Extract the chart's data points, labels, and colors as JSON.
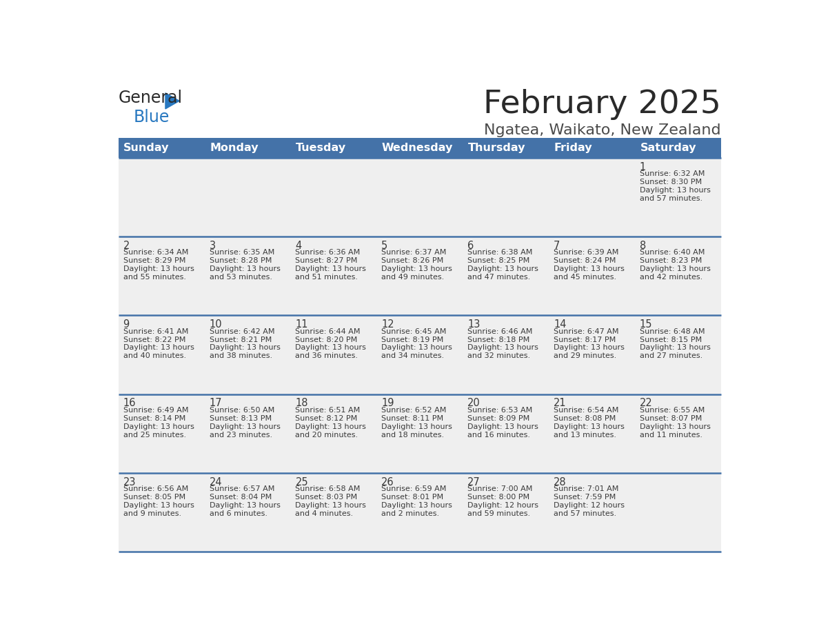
{
  "title": "February 2025",
  "subtitle": "Ngatea, Waikato, New Zealand",
  "days_of_week": [
    "Sunday",
    "Monday",
    "Tuesday",
    "Wednesday",
    "Thursday",
    "Friday",
    "Saturday"
  ],
  "header_bg": "#4472a8",
  "header_text": "#ffffff",
  "row_bg": "#efefef",
  "cell_border": "#4472a8",
  "day_number_color": "#3a3a3a",
  "info_text_color": "#3a3a3a",
  "title_color": "#2a2a2a",
  "subtitle_color": "#4a4a4a",
  "logo_general_color": "#2a2a2a",
  "logo_blue_color": "#2878c0",
  "calendar_data": [
    [
      null,
      null,
      null,
      null,
      null,
      null,
      {
        "day": "1",
        "sunrise": "6:32 AM",
        "sunset": "8:30 PM",
        "daylight_line1": "Daylight: 13 hours",
        "daylight_line2": "and 57 minutes."
      }
    ],
    [
      {
        "day": "2",
        "sunrise": "6:34 AM",
        "sunset": "8:29 PM",
        "daylight_line1": "Daylight: 13 hours",
        "daylight_line2": "and 55 minutes."
      },
      {
        "day": "3",
        "sunrise": "6:35 AM",
        "sunset": "8:28 PM",
        "daylight_line1": "Daylight: 13 hours",
        "daylight_line2": "and 53 minutes."
      },
      {
        "day": "4",
        "sunrise": "6:36 AM",
        "sunset": "8:27 PM",
        "daylight_line1": "Daylight: 13 hours",
        "daylight_line2": "and 51 minutes."
      },
      {
        "day": "5",
        "sunrise": "6:37 AM",
        "sunset": "8:26 PM",
        "daylight_line1": "Daylight: 13 hours",
        "daylight_line2": "and 49 minutes."
      },
      {
        "day": "6",
        "sunrise": "6:38 AM",
        "sunset": "8:25 PM",
        "daylight_line1": "Daylight: 13 hours",
        "daylight_line2": "and 47 minutes."
      },
      {
        "day": "7",
        "sunrise": "6:39 AM",
        "sunset": "8:24 PM",
        "daylight_line1": "Daylight: 13 hours",
        "daylight_line2": "and 45 minutes."
      },
      {
        "day": "8",
        "sunrise": "6:40 AM",
        "sunset": "8:23 PM",
        "daylight_line1": "Daylight: 13 hours",
        "daylight_line2": "and 42 minutes."
      }
    ],
    [
      {
        "day": "9",
        "sunrise": "6:41 AM",
        "sunset": "8:22 PM",
        "daylight_line1": "Daylight: 13 hours",
        "daylight_line2": "and 40 minutes."
      },
      {
        "day": "10",
        "sunrise": "6:42 AM",
        "sunset": "8:21 PM",
        "daylight_line1": "Daylight: 13 hours",
        "daylight_line2": "and 38 minutes."
      },
      {
        "day": "11",
        "sunrise": "6:44 AM",
        "sunset": "8:20 PM",
        "daylight_line1": "Daylight: 13 hours",
        "daylight_line2": "and 36 minutes."
      },
      {
        "day": "12",
        "sunrise": "6:45 AM",
        "sunset": "8:19 PM",
        "daylight_line1": "Daylight: 13 hours",
        "daylight_line2": "and 34 minutes."
      },
      {
        "day": "13",
        "sunrise": "6:46 AM",
        "sunset": "8:18 PM",
        "daylight_line1": "Daylight: 13 hours",
        "daylight_line2": "and 32 minutes."
      },
      {
        "day": "14",
        "sunrise": "6:47 AM",
        "sunset": "8:17 PM",
        "daylight_line1": "Daylight: 13 hours",
        "daylight_line2": "and 29 minutes."
      },
      {
        "day": "15",
        "sunrise": "6:48 AM",
        "sunset": "8:15 PM",
        "daylight_line1": "Daylight: 13 hours",
        "daylight_line2": "and 27 minutes."
      }
    ],
    [
      {
        "day": "16",
        "sunrise": "6:49 AM",
        "sunset": "8:14 PM",
        "daylight_line1": "Daylight: 13 hours",
        "daylight_line2": "and 25 minutes."
      },
      {
        "day": "17",
        "sunrise": "6:50 AM",
        "sunset": "8:13 PM",
        "daylight_line1": "Daylight: 13 hours",
        "daylight_line2": "and 23 minutes."
      },
      {
        "day": "18",
        "sunrise": "6:51 AM",
        "sunset": "8:12 PM",
        "daylight_line1": "Daylight: 13 hours",
        "daylight_line2": "and 20 minutes."
      },
      {
        "day": "19",
        "sunrise": "6:52 AM",
        "sunset": "8:11 PM",
        "daylight_line1": "Daylight: 13 hours",
        "daylight_line2": "and 18 minutes."
      },
      {
        "day": "20",
        "sunrise": "6:53 AM",
        "sunset": "8:09 PM",
        "daylight_line1": "Daylight: 13 hours",
        "daylight_line2": "and 16 minutes."
      },
      {
        "day": "21",
        "sunrise": "6:54 AM",
        "sunset": "8:08 PM",
        "daylight_line1": "Daylight: 13 hours",
        "daylight_line2": "and 13 minutes."
      },
      {
        "day": "22",
        "sunrise": "6:55 AM",
        "sunset": "8:07 PM",
        "daylight_line1": "Daylight: 13 hours",
        "daylight_line2": "and 11 minutes."
      }
    ],
    [
      {
        "day": "23",
        "sunrise": "6:56 AM",
        "sunset": "8:05 PM",
        "daylight_line1": "Daylight: 13 hours",
        "daylight_line2": "and 9 minutes."
      },
      {
        "day": "24",
        "sunrise": "6:57 AM",
        "sunset": "8:04 PM",
        "daylight_line1": "Daylight: 13 hours",
        "daylight_line2": "and 6 minutes."
      },
      {
        "day": "25",
        "sunrise": "6:58 AM",
        "sunset": "8:03 PM",
        "daylight_line1": "Daylight: 13 hours",
        "daylight_line2": "and 4 minutes."
      },
      {
        "day": "26",
        "sunrise": "6:59 AM",
        "sunset": "8:01 PM",
        "daylight_line1": "Daylight: 13 hours",
        "daylight_line2": "and 2 minutes."
      },
      {
        "day": "27",
        "sunrise": "7:00 AM",
        "sunset": "8:00 PM",
        "daylight_line1": "Daylight: 12 hours",
        "daylight_line2": "and 59 minutes."
      },
      {
        "day": "28",
        "sunrise": "7:01 AM",
        "sunset": "7:59 PM",
        "daylight_line1": "Daylight: 12 hours",
        "daylight_line2": "and 57 minutes."
      },
      null
    ]
  ]
}
